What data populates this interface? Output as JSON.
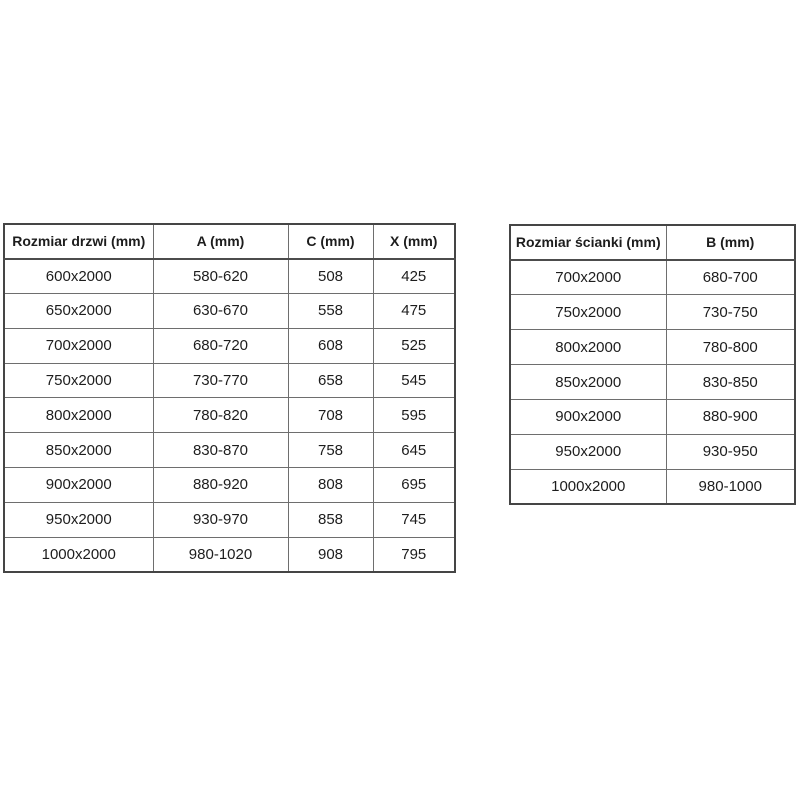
{
  "page": {
    "background_color": "#ffffff",
    "text_color": "#1d1d1d",
    "border_color": "#555555"
  },
  "door_table": {
    "headers": [
      "Rozmiar drzwi (mm)",
      "A (mm)",
      "C (mm)",
      "X (mm)"
    ],
    "rows": [
      [
        "600x2000",
        "580-620",
        "508",
        "425"
      ],
      [
        "650x2000",
        "630-670",
        "558",
        "475"
      ],
      [
        "700x2000",
        "680-720",
        "608",
        "525"
      ],
      [
        "750x2000",
        "730-770",
        "658",
        "545"
      ],
      [
        "800x2000",
        "780-820",
        "708",
        "595"
      ],
      [
        "850x2000",
        "830-870",
        "758",
        "645"
      ],
      [
        "900x2000",
        "880-920",
        "808",
        "695"
      ],
      [
        "950x2000",
        "930-970",
        "858",
        "745"
      ],
      [
        "1000x2000",
        "980-1020",
        "908",
        "795"
      ]
    ]
  },
  "wall_table": {
    "headers": [
      "Rozmiar ścianki (mm)",
      "B (mm)"
    ],
    "rows": [
      [
        "700x2000",
        "680-700"
      ],
      [
        "750x2000",
        "730-750"
      ],
      [
        "800x2000",
        "780-800"
      ],
      [
        "850x2000",
        "830-850"
      ],
      [
        "900x2000",
        "880-900"
      ],
      [
        "950x2000",
        "930-950"
      ],
      [
        "1000x2000",
        "980-1000"
      ]
    ]
  }
}
